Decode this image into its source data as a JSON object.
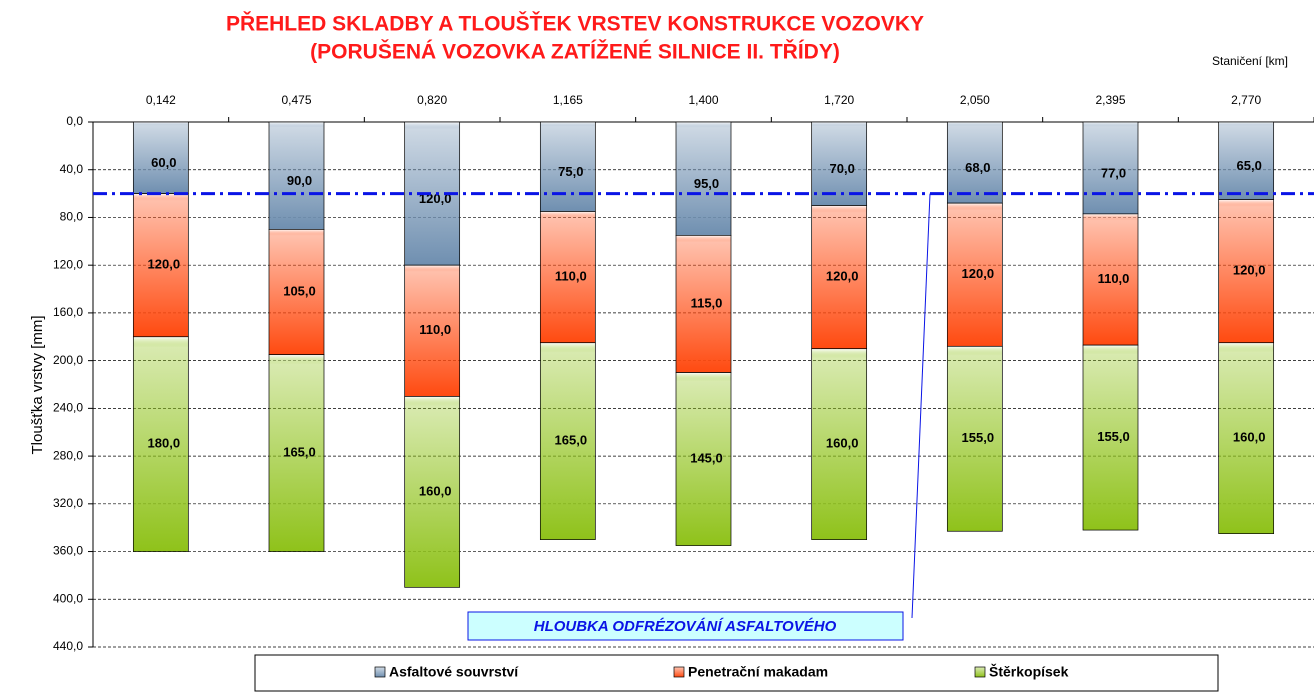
{
  "chart_data": {
    "type": "stacked_bar",
    "title": "PŘEHLED SKLADBY A TLOUŠŤEK VRSTEV KONSTRUKCE VOZOVKY",
    "subtitle": "(PORUŠENÁ VOZOVKA ZATÍŽENÉ SILNICE II. TŘÍDY)",
    "x_label": "Staničení  [km]",
    "y_label": "Tloušťka vrstvy [mm]",
    "categories": [
      "0,142",
      "0,475",
      "0,820",
      "1,165",
      "1,400",
      "1,720",
      "2,050",
      "2,395",
      "2,770"
    ],
    "series": [
      {
        "name": "Asfaltové souvrství",
        "color": "#6f8fb0",
        "values": [
          60,
          90,
          120,
          75,
          95,
          70,
          68,
          77,
          65
        ],
        "value_labels": [
          "60,0",
          "90,0",
          "120,0",
          "75,0",
          "95,0",
          "70,0",
          "68,0",
          "77,0",
          "65,0"
        ]
      },
      {
        "name": "Penetrační makadam",
        "color": "#ff4a10",
        "values": [
          120,
          105,
          110,
          110,
          115,
          120,
          120,
          110,
          120
        ],
        "value_labels": [
          "120,0",
          "105,0",
          "110,0",
          "110,0",
          "115,0",
          "120,0",
          "120,0",
          "110,0",
          "120,0"
        ]
      },
      {
        "name": "Štěrkopísek",
        "color": "#8fc21a",
        "values": [
          180,
          165,
          160,
          165,
          145,
          160,
          155,
          155,
          160
        ],
        "value_labels": [
          "180,0",
          "165,0",
          "160,0",
          "165,0",
          "145,0",
          "160,0",
          "155,0",
          "155,0",
          "160,0"
        ]
      }
    ],
    "ylim": [
      0,
      440
    ],
    "y_inverted": true,
    "grid": true,
    "yticks": [
      {
        "value": 0,
        "label": "0,0"
      },
      {
        "value": 40,
        "label": "40,0"
      },
      {
        "value": 80,
        "label": "80,0"
      },
      {
        "value": 120,
        "label": "120,0"
      },
      {
        "value": 160,
        "label": "160,0"
      },
      {
        "value": 200,
        "label": "200,0"
      },
      {
        "value": 240,
        "label": "240,0"
      },
      {
        "value": 280,
        "label": "280,0"
      },
      {
        "value": 320,
        "label": "320,0"
      },
      {
        "value": 360,
        "label": "360,0"
      },
      {
        "value": 400,
        "label": "400,0"
      },
      {
        "value": 440,
        "label": "440,0"
      }
    ],
    "reference_line": {
      "value": 60,
      "color": "#0a14e6",
      "label": "HLOUBKA  ODFRÉZOVÁNÍ  ASFALTOVÉHO"
    },
    "legend": "bottom"
  }
}
